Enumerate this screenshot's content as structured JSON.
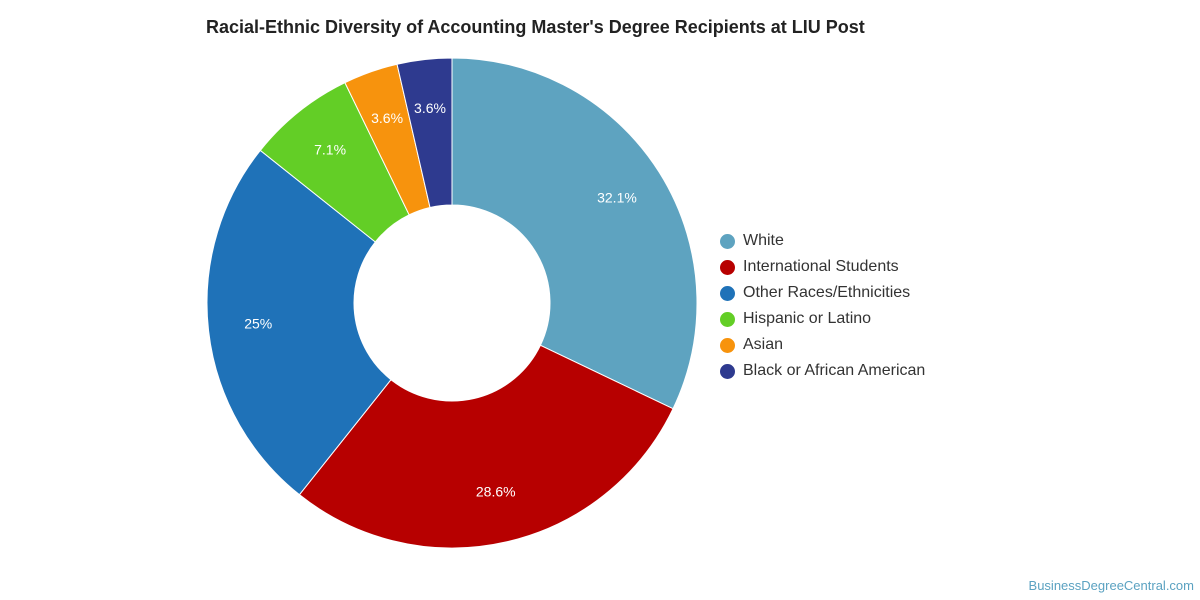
{
  "chart_data": {
    "type": "pie",
    "title": "Racial-Ethnic Diversity of Accounting Master's Degree Recipients at LIU Post",
    "donut": true,
    "legend_position": "right",
    "slices": [
      {
        "label": "White",
        "value": 32.1,
        "value_label": "32.1%",
        "color": "#5ea3c0"
      },
      {
        "label": "International Students",
        "value": 28.6,
        "value_label": "28.6%",
        "color": "#b70000"
      },
      {
        "label": "Other Races/Ethnicities",
        "value": 25,
        "value_label": "25%",
        "color": "#1f72b8"
      },
      {
        "label": "Hispanic or Latino",
        "value": 7.1,
        "value_label": "7.1%",
        "color": "#63ce26"
      },
      {
        "label": "Asian",
        "value": 3.6,
        "value_label": "3.6%",
        "color": "#f7930d"
      },
      {
        "label": "Black or African American",
        "value": 3.6,
        "value_label": "3.6%",
        "color": "#2e3a8f"
      }
    ]
  },
  "source": "BusinessDegreeCentral.com"
}
